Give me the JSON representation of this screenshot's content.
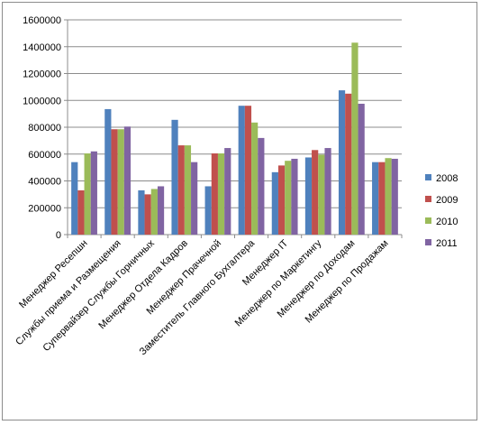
{
  "chart_data": {
    "type": "bar",
    "title": "",
    "xlabel": "",
    "ylabel": "",
    "ylim": [
      0,
      1600000
    ],
    "yticks": [
      0,
      200000,
      400000,
      600000,
      800000,
      1000000,
      1200000,
      1400000,
      1600000
    ],
    "ytick_labels": [
      "0",
      "200000",
      "400000",
      "600000",
      "800000",
      "1000000",
      "1200000",
      "1400000",
      "1600000"
    ],
    "grid": "horizontal",
    "legend_position": "right",
    "categories": [
      "Менеджер Ресепшн",
      "Службы приема и Размещения",
      "Супервайзер Службы Горничных",
      "Менеджер Отдела Кадров",
      "Менеджер Прачечной",
      "Заместитель Главного Бухгалтера",
      "Менеджер IT",
      "Менеджер по Маркетингу",
      "Менеджер по Доходам",
      "Менеджер по Продажам"
    ],
    "series": [
      {
        "name": "2008",
        "color": "#4f81bd",
        "values": [
          540000,
          935000,
          330000,
          855000,
          360000,
          960000,
          465000,
          575000,
          1075000,
          540000
        ]
      },
      {
        "name": "2009",
        "color": "#c0504d",
        "values": [
          330000,
          785000,
          300000,
          665000,
          605000,
          960000,
          515000,
          630000,
          1050000,
          540000
        ]
      },
      {
        "name": "2010",
        "color": "#9bbb59",
        "values": [
          605000,
          785000,
          340000,
          665000,
          605000,
          835000,
          550000,
          595000,
          1430000,
          570000
        ]
      },
      {
        "name": "2011",
        "color": "#8064a2",
        "values": [
          620000,
          805000,
          360000,
          540000,
          645000,
          720000,
          565000,
          645000,
          975000,
          565000
        ]
      }
    ]
  }
}
